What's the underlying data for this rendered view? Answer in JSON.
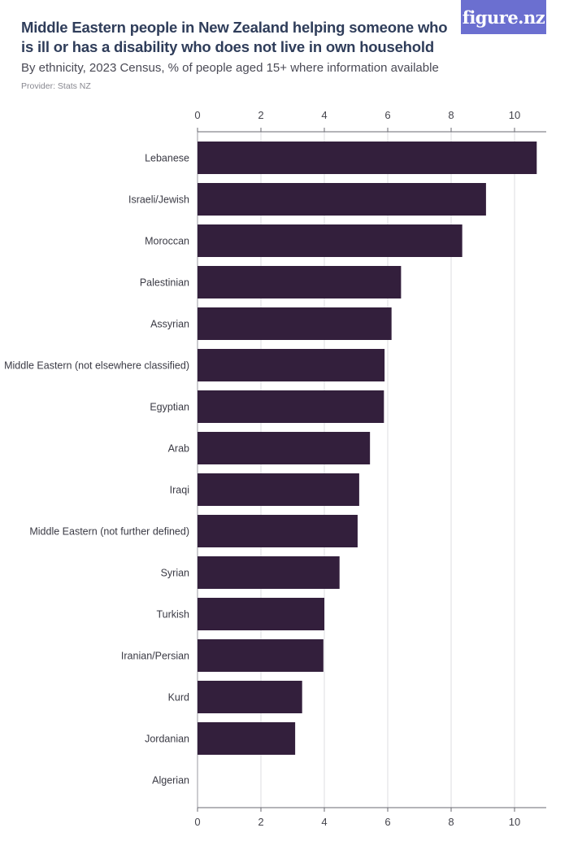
{
  "header": {
    "title": "Middle Eastern people in New Zealand helping someone who is ill or has a disability who does not live in own household",
    "subtitle": "By ethnicity, 2023 Census, % of people aged 15+ where information available",
    "provider": "Provider: Stats NZ"
  },
  "brand": {
    "logo_text": "figure.nz",
    "logo_color": "#6b6fd0"
  },
  "chart_data": {
    "type": "bar",
    "orientation": "horizontal",
    "title": "Middle Eastern people in New Zealand helping someone who is ill or has a disability who does not live in own household",
    "xlabel": "",
    "ylabel": "",
    "xlim": [
      0,
      11
    ],
    "xticks": [
      0,
      2,
      4,
      6,
      8,
      10
    ],
    "grid": true,
    "bar_color": "#331f3c",
    "categories": [
      "Lebanese",
      "Israeli/Jewish",
      "Moroccan",
      "Palestinian",
      "Assyrian",
      "Middle Eastern (not elsewhere classified)",
      "Egyptian",
      "Arab",
      "Iraqi",
      "Middle Eastern (not further defined)",
      "Syrian",
      "Turkish",
      "Iranian/Persian",
      "Kurd",
      "Jordanian",
      "Algerian"
    ],
    "values": [
      10.7,
      9.1,
      8.35,
      6.42,
      6.12,
      5.9,
      5.88,
      5.44,
      5.1,
      5.05,
      4.48,
      4.0,
      3.97,
      3.3,
      3.08,
      0
    ]
  }
}
